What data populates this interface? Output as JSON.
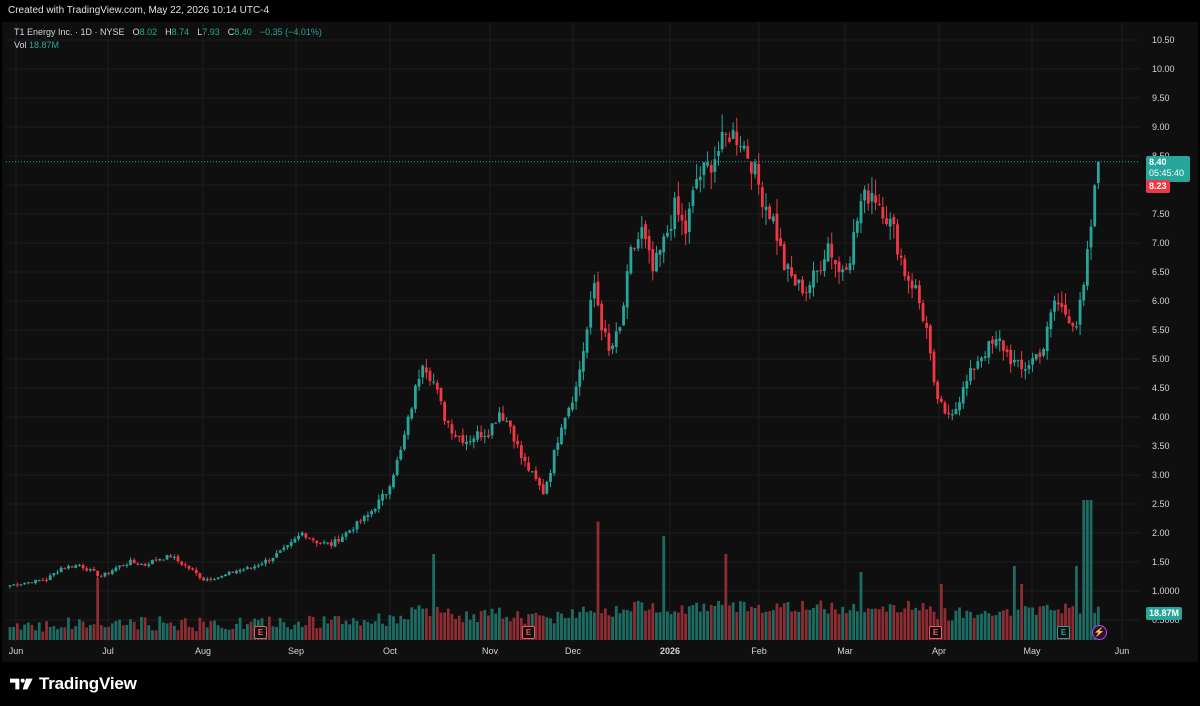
{
  "header": {
    "created_text": "Created with TradingView.com, May 22, 2026 10:14 UTC-4"
  },
  "legend": {
    "symbol": "T1 Energy Inc. · 1D · NYSE",
    "o_label": "O",
    "o_value": "8.02",
    "h_label": "H",
    "h_value": "8.74",
    "l_label": "L",
    "l_value": "7.93",
    "c_label": "C",
    "c_value": "8.40",
    "change": "−0.35 (−4.01%)",
    "vol_label": "Vol",
    "vol_value": "18.87M"
  },
  "price_badges": {
    "last_price": "8.40",
    "countdown": "05:45:40",
    "prev_price": "8.23",
    "volume": "18.87M"
  },
  "earnings_marker": "E",
  "footer": {
    "brand": "TradingView"
  },
  "colors": {
    "up": "#26a69a",
    "down": "#f23645",
    "vol_up": "#1d6b63",
    "vol_down": "#8c2c33",
    "background": "#0f0f0f",
    "grid": "#1c1c1c"
  },
  "chart_data": {
    "type": "candlestick",
    "title": "T1 Energy Inc. · 1D · NYSE",
    "y_ticks": [
      "10.50",
      "10.00",
      "9.50",
      "9.00",
      "8.50",
      "8.00",
      "7.50",
      "7.00",
      "6.50",
      "6.00",
      "5.50",
      "5.00",
      "4.50",
      "4.00",
      "3.50",
      "3.00",
      "2.50",
      "2.00",
      "1.50",
      "1.0000",
      "0.5000"
    ],
    "x_ticks": [
      "Jun",
      "Jul",
      "Aug",
      "Sep",
      "Oct",
      "Nov",
      "Dec",
      "2026",
      "Feb",
      "Mar",
      "Apr",
      "May",
      "Jun"
    ],
    "ylim": [
      0.3,
      10.75
    ],
    "last_price": 8.4,
    "series": [
      {
        "name": "price",
        "waypoints": [
          [
            0,
            1.1
          ],
          [
            10,
            1.2
          ],
          [
            14,
            1.4
          ],
          [
            19,
            1.45
          ],
          [
            25,
            1.25
          ],
          [
            29,
            1.4
          ],
          [
            33,
            1.5
          ],
          [
            37,
            1.45
          ],
          [
            40,
            1.55
          ],
          [
            44,
            1.6
          ],
          [
            50,
            1.35
          ],
          [
            53,
            1.2
          ],
          [
            58,
            1.25
          ],
          [
            62,
            1.35
          ],
          [
            66,
            1.4
          ],
          [
            71,
            1.55
          ],
          [
            76,
            1.75
          ],
          [
            80,
            2.0
          ],
          [
            84,
            1.85
          ],
          [
            88,
            1.8
          ],
          [
            93,
            2.05
          ],
          [
            98,
            2.3
          ],
          [
            103,
            2.7
          ],
          [
            107,
            3.4
          ],
          [
            110,
            4.2
          ],
          [
            113,
            5.0
          ],
          [
            116,
            4.6
          ],
          [
            119,
            4.0
          ],
          [
            122,
            3.7
          ],
          [
            125,
            3.6
          ],
          [
            128,
            3.7
          ],
          [
            131,
            3.75
          ],
          [
            134,
            4.1
          ],
          [
            137,
            3.85
          ],
          [
            140,
            3.3
          ],
          [
            143,
            3.0
          ],
          [
            146,
            2.7
          ],
          [
            148,
            3.1
          ],
          [
            151,
            3.9
          ],
          [
            155,
            4.5
          ],
          [
            158,
            5.5
          ],
          [
            160,
            6.3
          ],
          [
            162,
            5.6
          ],
          [
            164,
            5.1
          ],
          [
            167,
            5.5
          ],
          [
            170,
            6.8
          ],
          [
            173,
            7.2
          ],
          [
            176,
            6.5
          ],
          [
            179,
            7.0
          ],
          [
            182,
            7.6
          ],
          [
            185,
            7.2
          ],
          [
            188,
            8.1
          ],
          [
            191,
            8.3
          ],
          [
            194,
            8.6
          ],
          [
            197,
            8.9
          ],
          [
            200,
            8.8
          ],
          [
            203,
            8.4
          ],
          [
            206,
            7.8
          ],
          [
            209,
            7.4
          ],
          [
            212,
            6.6
          ],
          [
            215,
            6.3
          ],
          [
            218,
            6.2
          ],
          [
            221,
            6.5
          ],
          [
            224,
            7.0
          ],
          [
            227,
            6.5
          ],
          [
            230,
            6.8
          ],
          [
            233,
            7.7
          ],
          [
            236,
            7.9
          ],
          [
            239,
            7.6
          ],
          [
            242,
            7.2
          ],
          [
            245,
            6.5
          ],
          [
            248,
            6.2
          ],
          [
            251,
            5.5
          ],
          [
            253,
            4.5
          ],
          [
            256,
            4.0
          ],
          [
            259,
            4.2
          ],
          [
            262,
            4.6
          ],
          [
            265,
            5.0
          ],
          [
            268,
            5.2
          ],
          [
            271,
            5.3
          ],
          [
            274,
            5.0
          ],
          [
            277,
            4.8
          ],
          [
            280,
            5.0
          ],
          [
            283,
            5.2
          ],
          [
            286,
            6.0
          ],
          [
            289,
            5.8
          ],
          [
            292,
            5.6
          ],
          [
            294,
            6.2
          ],
          [
            296,
            7.3
          ],
          [
            298,
            8.4
          ]
        ]
      }
    ],
    "volume_spikes": [
      [
        24,
        0.35
      ],
      [
        116,
        0.55
      ],
      [
        161,
        0.82
      ],
      [
        179,
        0.7
      ],
      [
        196,
        0.55
      ],
      [
        233,
        0.4
      ],
      [
        255,
        0.3
      ],
      [
        275,
        0.45
      ],
      [
        277,
        0.3
      ],
      [
        292,
        0.45
      ],
      [
        294,
        1.0
      ],
      [
        295,
        1.0
      ],
      [
        296,
        1.0
      ]
    ]
  }
}
